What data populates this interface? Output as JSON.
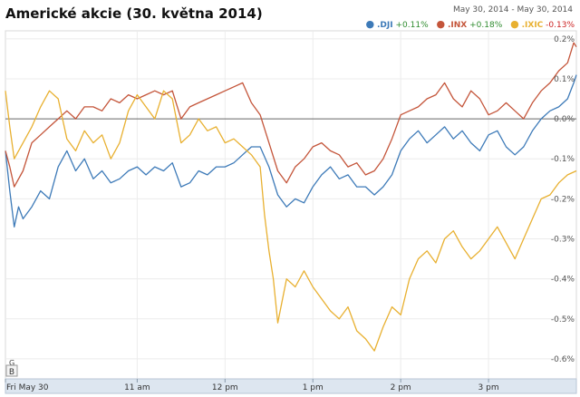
{
  "header": {
    "title": "Americké akcie (30. května 2014)",
    "date_range": "May 30, 2014 - May 30, 2014"
  },
  "legend": [
    {
      "name": ".DJI",
      "change": "+0.11%",
      "color": "#3d7ab8",
      "change_color": "#2e8b2e"
    },
    {
      "name": ".INX",
      "change": "+0.18%",
      "color": "#c4553a",
      "change_color": "#2e8b2e"
    },
    {
      "name": ".IXIC",
      "change": "-0.13%",
      "color": "#e8b030",
      "change_color": "#cc2222"
    }
  ],
  "controls": {
    "scroll_button": "B",
    "marker_label": "G"
  },
  "chart_data": {
    "type": "line",
    "title": "Americké akcie (30. května 2014)",
    "xlabel": "",
    "ylabel": "",
    "x_ticks": [
      "Fri May 30",
      "11 am",
      "12 pm",
      "1 pm",
      "2 pm",
      "3 pm"
    ],
    "x_tick_positions": [
      9.5,
      11,
      12,
      13,
      14,
      15
    ],
    "xlim": [
      9.5,
      16
    ],
    "ylim": [
      -0.65,
      0.22
    ],
    "y_ticks": [
      0.2,
      0.1,
      0.0,
      -0.1,
      -0.2,
      -0.3,
      -0.4,
      -0.5,
      -0.6
    ],
    "y_tick_labels": [
      "0.2%",
      "0.1%",
      "0.0%",
      "-0.1%",
      "-0.2%",
      "-0.3%",
      "-0.4%",
      "-0.5%",
      "-0.6%"
    ],
    "zero_line": true,
    "grid": true,
    "series": [
      {
        "name": ".DJI",
        "color": "#3d7ab8",
        "points": [
          [
            9.5,
            -0.08
          ],
          [
            9.55,
            -0.18
          ],
          [
            9.6,
            -0.27
          ],
          [
            9.65,
            -0.22
          ],
          [
            9.7,
            -0.25
          ],
          [
            9.8,
            -0.22
          ],
          [
            9.9,
            -0.18
          ],
          [
            10.0,
            -0.2
          ],
          [
            10.1,
            -0.12
          ],
          [
            10.2,
            -0.08
          ],
          [
            10.3,
            -0.13
          ],
          [
            10.4,
            -0.1
          ],
          [
            10.5,
            -0.15
          ],
          [
            10.6,
            -0.13
          ],
          [
            10.7,
            -0.16
          ],
          [
            10.8,
            -0.15
          ],
          [
            10.9,
            -0.13
          ],
          [
            11.0,
            -0.12
          ],
          [
            11.1,
            -0.14
          ],
          [
            11.2,
            -0.12
          ],
          [
            11.3,
            -0.13
          ],
          [
            11.4,
            -0.11
          ],
          [
            11.5,
            -0.17
          ],
          [
            11.6,
            -0.16
          ],
          [
            11.7,
            -0.13
          ],
          [
            11.8,
            -0.14
          ],
          [
            11.9,
            -0.12
          ],
          [
            12.0,
            -0.12
          ],
          [
            12.1,
            -0.11
          ],
          [
            12.2,
            -0.09
          ],
          [
            12.3,
            -0.07
          ],
          [
            12.4,
            -0.07
          ],
          [
            12.5,
            -0.12
          ],
          [
            12.6,
            -0.19
          ],
          [
            12.7,
            -0.22
          ],
          [
            12.8,
            -0.2
          ],
          [
            12.9,
            -0.21
          ],
          [
            13.0,
            -0.17
          ],
          [
            13.1,
            -0.14
          ],
          [
            13.2,
            -0.12
          ],
          [
            13.3,
            -0.15
          ],
          [
            13.4,
            -0.14
          ],
          [
            13.5,
            -0.17
          ],
          [
            13.6,
            -0.17
          ],
          [
            13.7,
            -0.19
          ],
          [
            13.8,
            -0.17
          ],
          [
            13.9,
            -0.14
          ],
          [
            14.0,
            -0.08
          ],
          [
            14.1,
            -0.05
          ],
          [
            14.2,
            -0.03
          ],
          [
            14.3,
            -0.06
          ],
          [
            14.4,
            -0.04
          ],
          [
            14.5,
            -0.02
          ],
          [
            14.6,
            -0.05
          ],
          [
            14.7,
            -0.03
          ],
          [
            14.8,
            -0.06
          ],
          [
            14.9,
            -0.08
          ],
          [
            15.0,
            -0.04
          ],
          [
            15.1,
            -0.03
          ],
          [
            15.2,
            -0.07
          ],
          [
            15.3,
            -0.09
          ],
          [
            15.4,
            -0.07
          ],
          [
            15.5,
            -0.03
          ],
          [
            15.6,
            0.0
          ],
          [
            15.7,
            0.02
          ],
          [
            15.8,
            0.03
          ],
          [
            15.9,
            0.05
          ],
          [
            15.97,
            0.09
          ],
          [
            16.0,
            0.11
          ]
        ]
      },
      {
        "name": ".INX",
        "color": "#c4553a",
        "points": [
          [
            9.5,
            -0.08
          ],
          [
            9.55,
            -0.12
          ],
          [
            9.6,
            -0.17
          ],
          [
            9.7,
            -0.13
          ],
          [
            9.8,
            -0.06
          ],
          [
            9.9,
            -0.04
          ],
          [
            10.0,
            -0.02
          ],
          [
            10.1,
            0.0
          ],
          [
            10.2,
            0.02
          ],
          [
            10.3,
            0.0
          ],
          [
            10.4,
            0.03
          ],
          [
            10.5,
            0.03
          ],
          [
            10.6,
            0.02
          ],
          [
            10.7,
            0.05
          ],
          [
            10.8,
            0.04
          ],
          [
            10.9,
            0.06
          ],
          [
            11.0,
            0.05
          ],
          [
            11.1,
            0.06
          ],
          [
            11.2,
            0.07
          ],
          [
            11.3,
            0.06
          ],
          [
            11.4,
            0.07
          ],
          [
            11.5,
            0.0
          ],
          [
            11.6,
            0.03
          ],
          [
            11.7,
            0.04
          ],
          [
            11.8,
            0.05
          ],
          [
            11.9,
            0.06
          ],
          [
            12.0,
            0.07
          ],
          [
            12.1,
            0.08
          ],
          [
            12.2,
            0.09
          ],
          [
            12.3,
            0.04
          ],
          [
            12.4,
            0.01
          ],
          [
            12.5,
            -0.06
          ],
          [
            12.6,
            -0.13
          ],
          [
            12.7,
            -0.16
          ],
          [
            12.8,
            -0.12
          ],
          [
            12.9,
            -0.1
          ],
          [
            13.0,
            -0.07
          ],
          [
            13.1,
            -0.06
          ],
          [
            13.2,
            -0.08
          ],
          [
            13.3,
            -0.09
          ],
          [
            13.4,
            -0.12
          ],
          [
            13.5,
            -0.11
          ],
          [
            13.6,
            -0.14
          ],
          [
            13.7,
            -0.13
          ],
          [
            13.8,
            -0.1
          ],
          [
            13.9,
            -0.05
          ],
          [
            14.0,
            0.01
          ],
          [
            14.1,
            0.02
          ],
          [
            14.2,
            0.03
          ],
          [
            14.3,
            0.05
          ],
          [
            14.4,
            0.06
          ],
          [
            14.5,
            0.09
          ],
          [
            14.6,
            0.05
          ],
          [
            14.7,
            0.03
          ],
          [
            14.8,
            0.07
          ],
          [
            14.9,
            0.05
          ],
          [
            15.0,
            0.01
          ],
          [
            15.1,
            0.02
          ],
          [
            15.2,
            0.04
          ],
          [
            15.3,
            0.02
          ],
          [
            15.4,
            0.0
          ],
          [
            15.5,
            0.04
          ],
          [
            15.6,
            0.07
          ],
          [
            15.7,
            0.09
          ],
          [
            15.8,
            0.12
          ],
          [
            15.9,
            0.14
          ],
          [
            15.97,
            0.19
          ],
          [
            16.0,
            0.18
          ]
        ]
      },
      {
        "name": ".IXIC",
        "color": "#e8b030",
        "points": [
          [
            9.5,
            0.07
          ],
          [
            9.55,
            -0.02
          ],
          [
            9.6,
            -0.1
          ],
          [
            9.7,
            -0.06
          ],
          [
            9.8,
            -0.02
          ],
          [
            9.9,
            0.03
          ],
          [
            10.0,
            0.07
          ],
          [
            10.1,
            0.05
          ],
          [
            10.2,
            -0.05
          ],
          [
            10.3,
            -0.08
          ],
          [
            10.4,
            -0.03
          ],
          [
            10.5,
            -0.06
          ],
          [
            10.6,
            -0.04
          ],
          [
            10.7,
            -0.1
          ],
          [
            10.8,
            -0.06
          ],
          [
            10.9,
            0.02
          ],
          [
            11.0,
            0.06
          ],
          [
            11.1,
            0.03
          ],
          [
            11.2,
            0.0
          ],
          [
            11.3,
            0.07
          ],
          [
            11.4,
            0.05
          ],
          [
            11.5,
            -0.06
          ],
          [
            11.6,
            -0.04
          ],
          [
            11.7,
            0.0
          ],
          [
            11.8,
            -0.03
          ],
          [
            11.9,
            -0.02
          ],
          [
            12.0,
            -0.06
          ],
          [
            12.1,
            -0.05
          ],
          [
            12.2,
            -0.07
          ],
          [
            12.3,
            -0.09
          ],
          [
            12.4,
            -0.12
          ],
          [
            12.45,
            -0.24
          ],
          [
            12.5,
            -0.33
          ],
          [
            12.55,
            -0.4
          ],
          [
            12.6,
            -0.51
          ],
          [
            12.7,
            -0.4
          ],
          [
            12.8,
            -0.42
          ],
          [
            12.9,
            -0.38
          ],
          [
            13.0,
            -0.42
          ],
          [
            13.1,
            -0.45
          ],
          [
            13.2,
            -0.48
          ],
          [
            13.3,
            -0.5
          ],
          [
            13.4,
            -0.47
          ],
          [
            13.5,
            -0.53
          ],
          [
            13.6,
            -0.55
          ],
          [
            13.7,
            -0.58
          ],
          [
            13.8,
            -0.52
          ],
          [
            13.9,
            -0.47
          ],
          [
            14.0,
            -0.49
          ],
          [
            14.1,
            -0.4
          ],
          [
            14.2,
            -0.35
          ],
          [
            14.3,
            -0.33
          ],
          [
            14.4,
            -0.36
          ],
          [
            14.5,
            -0.3
          ],
          [
            14.6,
            -0.28
          ],
          [
            14.7,
            -0.32
          ],
          [
            14.8,
            -0.35
          ],
          [
            14.9,
            -0.33
          ],
          [
            15.0,
            -0.3
          ],
          [
            15.1,
            -0.27
          ],
          [
            15.2,
            -0.31
          ],
          [
            15.3,
            -0.35
          ],
          [
            15.4,
            -0.3
          ],
          [
            15.5,
            -0.25
          ],
          [
            15.6,
            -0.2
          ],
          [
            15.7,
            -0.19
          ],
          [
            15.8,
            -0.16
          ],
          [
            15.9,
            -0.14
          ],
          [
            16.0,
            -0.13
          ]
        ]
      }
    ]
  }
}
